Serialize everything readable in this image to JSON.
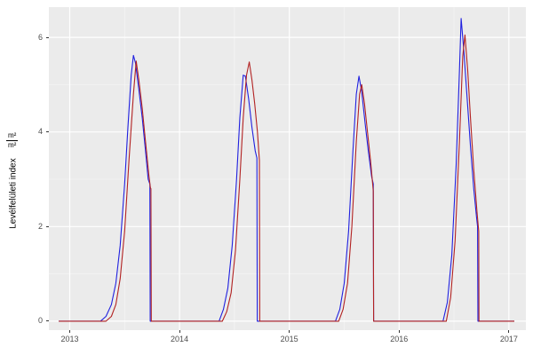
{
  "chart_data": {
    "type": "line",
    "title": "",
    "xlabel": "",
    "ylabel": "Levélfelületi index",
    "ylabel_unit": {
      "numerator": "m²",
      "denominator": "m²"
    },
    "xlim": [
      2012.81,
      2017.155
    ],
    "ylim": [
      -0.19,
      6.64
    ],
    "x_ticks": [
      2013,
      2014,
      2015,
      2016,
      2017
    ],
    "x_tick_labels": [
      "2013",
      "2014",
      "2015",
      "2016",
      "2017"
    ],
    "y_ticks": [
      0,
      2,
      4,
      6
    ],
    "y_tick_labels": [
      "0",
      "2",
      "4",
      "6"
    ],
    "x_minor": [
      2013.5,
      2014.5,
      2015.5,
      2016.5
    ],
    "y_minor": [
      1,
      3,
      5
    ],
    "grid": true,
    "legend": "none",
    "panel_background": "#EBEBEB",
    "grid_major_color": "#FFFFFF",
    "grid_minor_color": "#F5F5F5",
    "tick_mark_color": "#333333",
    "tick_label_color": "#4D4D4D",
    "series": [
      {
        "name": "blue-line",
        "color": "#2020DF",
        "points": [
          [
            2012.9,
            0
          ],
          [
            2013.28,
            0
          ],
          [
            2013.33,
            0.1
          ],
          [
            2013.38,
            0.35
          ],
          [
            2013.42,
            0.8
          ],
          [
            2013.46,
            1.6
          ],
          [
            2013.5,
            2.9
          ],
          [
            2013.53,
            4.1
          ],
          [
            2013.56,
            5.2
          ],
          [
            2013.58,
            5.62
          ],
          [
            2013.6,
            5.45
          ],
          [
            2013.63,
            4.9
          ],
          [
            2013.66,
            4.3
          ],
          [
            2013.69,
            3.6
          ],
          [
            2013.715,
            3.0
          ],
          [
            2013.73,
            2.9
          ],
          [
            2013.733,
            0
          ],
          [
            2014.36,
            0
          ],
          [
            2014.4,
            0.25
          ],
          [
            2014.44,
            0.7
          ],
          [
            2014.48,
            1.6
          ],
          [
            2014.52,
            3.0
          ],
          [
            2014.55,
            4.3
          ],
          [
            2014.58,
            5.2
          ],
          [
            2014.6,
            5.18
          ],
          [
            2014.63,
            4.7
          ],
          [
            2014.66,
            4.1
          ],
          [
            2014.69,
            3.6
          ],
          [
            2014.705,
            3.45
          ],
          [
            2014.708,
            0
          ],
          [
            2015.42,
            0
          ],
          [
            2015.46,
            0.25
          ],
          [
            2015.5,
            0.8
          ],
          [
            2015.54,
            1.9
          ],
          [
            2015.58,
            3.6
          ],
          [
            2015.61,
            4.8
          ],
          [
            2015.635,
            5.18
          ],
          [
            2015.66,
            4.85
          ],
          [
            2015.69,
            4.2
          ],
          [
            2015.72,
            3.6
          ],
          [
            2015.75,
            3.05
          ],
          [
            2015.765,
            2.9
          ],
          [
            2015.768,
            0
          ],
          [
            2016.4,
            0
          ],
          [
            2016.44,
            0.4
          ],
          [
            2016.48,
            1.4
          ],
          [
            2016.52,
            3.3
          ],
          [
            2016.55,
            5.3
          ],
          [
            2016.565,
            6.4
          ],
          [
            2016.59,
            5.7
          ],
          [
            2016.62,
            4.7
          ],
          [
            2016.65,
            3.7
          ],
          [
            2016.68,
            2.8
          ],
          [
            2016.705,
            2.2
          ],
          [
            2016.715,
            2.0
          ],
          [
            2016.718,
            0
          ],
          [
            2017.05,
            0
          ]
        ]
      },
      {
        "name": "red-line",
        "color": "#B22222",
        "points": [
          [
            2012.9,
            0
          ],
          [
            2013.33,
            0
          ],
          [
            2013.38,
            0.1
          ],
          [
            2013.42,
            0.35
          ],
          [
            2013.46,
            0.9
          ],
          [
            2013.5,
            1.9
          ],
          [
            2013.54,
            3.4
          ],
          [
            2013.58,
            4.8
          ],
          [
            2013.605,
            5.5
          ],
          [
            2013.63,
            5.1
          ],
          [
            2013.66,
            4.5
          ],
          [
            2013.69,
            3.8
          ],
          [
            2013.72,
            3.1
          ],
          [
            2013.735,
            2.82
          ],
          [
            2013.74,
            2.8
          ],
          [
            2013.743,
            0
          ],
          [
            2014.39,
            0
          ],
          [
            2014.43,
            0.2
          ],
          [
            2014.47,
            0.6
          ],
          [
            2014.51,
            1.5
          ],
          [
            2014.55,
            3.0
          ],
          [
            2014.58,
            4.3
          ],
          [
            2014.61,
            5.2
          ],
          [
            2014.635,
            5.48
          ],
          [
            2014.66,
            5.1
          ],
          [
            2014.685,
            4.6
          ],
          [
            2014.71,
            4.0
          ],
          [
            2014.728,
            3.4
          ],
          [
            2014.731,
            0
          ],
          [
            2015.45,
            0
          ],
          [
            2015.49,
            0.25
          ],
          [
            2015.53,
            0.8
          ],
          [
            2015.57,
            2.0
          ],
          [
            2015.61,
            3.8
          ],
          [
            2015.64,
            4.8
          ],
          [
            2015.66,
            5.0
          ],
          [
            2015.685,
            4.6
          ],
          [
            2015.71,
            4.05
          ],
          [
            2015.74,
            3.4
          ],
          [
            2015.765,
            2.75
          ],
          [
            2015.768,
            0
          ],
          [
            2016.43,
            0
          ],
          [
            2016.47,
            0.5
          ],
          [
            2016.51,
            1.7
          ],
          [
            2016.55,
            3.8
          ],
          [
            2016.58,
            5.6
          ],
          [
            2016.6,
            6.05
          ],
          [
            2016.625,
            5.3
          ],
          [
            2016.65,
            4.3
          ],
          [
            2016.68,
            3.2
          ],
          [
            2016.71,
            2.3
          ],
          [
            2016.725,
            1.9
          ],
          [
            2016.728,
            0
          ],
          [
            2017.05,
            0
          ]
        ]
      }
    ]
  }
}
